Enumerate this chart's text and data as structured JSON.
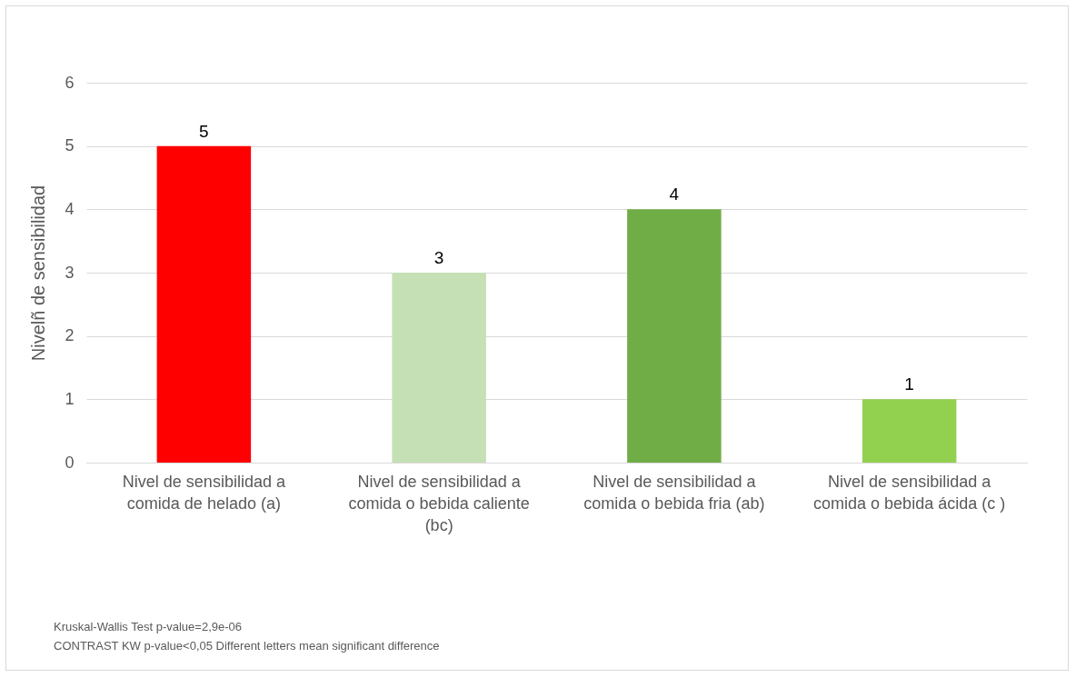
{
  "chart_data": {
    "type": "bar",
    "ylabel": "Nivelñ de sensibilidad",
    "categories": [
      "Nivel de sensibilidad a comida de helado (a)",
      "Nivel de sensibilidad a comida o bebida caliente (bc)",
      "Nivel de sensibilidad a comida o bebida fria (ab)",
      "Nivel de sensibilidad a comida o bebida ácida (c )"
    ],
    "values": [
      5,
      3,
      4,
      1
    ],
    "colors": [
      "#ff0000",
      "#c5e0b4",
      "#70ad47",
      "#92d050"
    ],
    "ylim": [
      0,
      6
    ],
    "yticks": [
      0,
      1,
      2,
      3,
      4,
      5,
      6
    ],
    "grid": "y",
    "data_labels": true,
    "annotations": [
      "Kruskal-Wallis Test p-value=2,9e-06",
      "CONTRAST KW p-value<0,05 Different letters mean significant difference"
    ]
  }
}
